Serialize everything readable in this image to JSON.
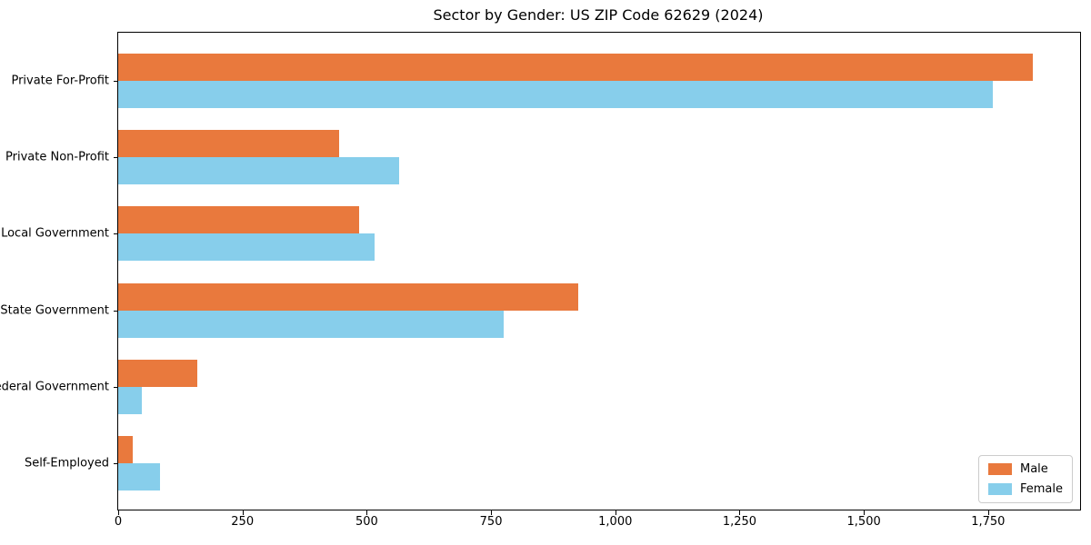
{
  "chart_data": {
    "type": "bar",
    "orientation": "horizontal",
    "title": "Sector by Gender: US ZIP Code 62629 (2024)",
    "categories": [
      "Private For-Profit",
      "Private Non-Profit",
      "Local Government",
      "State Government",
      "Federal Government",
      "Self-Employed"
    ],
    "series": [
      {
        "name": "Male",
        "color": "#e9793d",
        "values": [
          1840,
          445,
          485,
          925,
          160,
          30
        ]
      },
      {
        "name": "Female",
        "color": "#87ceeb",
        "values": [
          1760,
          565,
          515,
          775,
          48,
          85
        ]
      }
    ],
    "xlabel": "",
    "ylabel": "",
    "xlim": [
      0,
      1935
    ],
    "xticks": [
      {
        "value": 0,
        "label": "0"
      },
      {
        "value": 250,
        "label": "250"
      },
      {
        "value": 500,
        "label": "500"
      },
      {
        "value": 750,
        "label": "750"
      },
      {
        "value": 1000,
        "label": "1,000"
      },
      {
        "value": 1250,
        "label": "1,250"
      },
      {
        "value": 1500,
        "label": "1,500"
      },
      {
        "value": 1750,
        "label": "1,750"
      }
    ],
    "grid": false,
    "legend": {
      "position": "lower right",
      "entries": [
        "Male",
        "Female"
      ]
    }
  }
}
